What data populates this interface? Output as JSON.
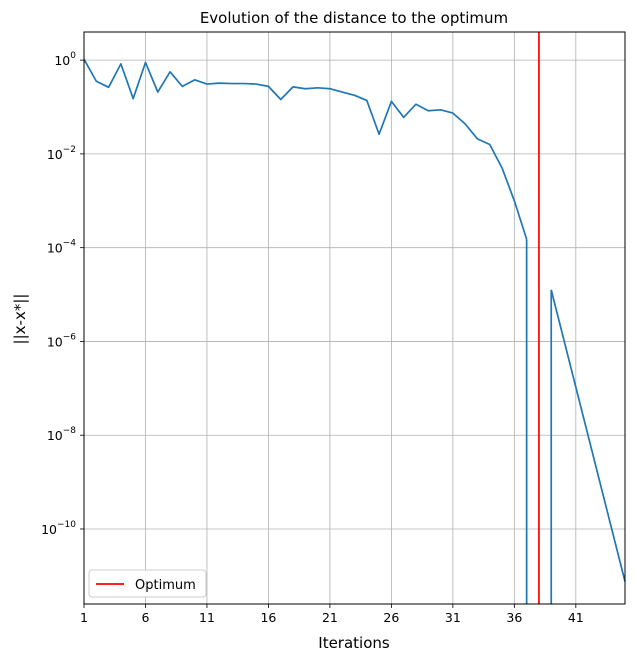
{
  "chart_data": {
    "type": "line",
    "title": "Evolution of the distance to the optimum",
    "xlabel": "Iterations",
    "ylabel": "||x-x*||",
    "yscale": "log",
    "xlim": [
      1,
      45
    ],
    "ylim_exponent": [
      -11.6,
      0.6
    ],
    "grid": true,
    "legend_placement": "lower-left",
    "xticks": [
      1,
      6,
      11,
      16,
      21,
      26,
      31,
      36,
      41
    ],
    "yticks_exponent": [
      0,
      -2,
      -4,
      -6,
      -8,
      -10
    ],
    "series": [
      {
        "color": "#1f77b4",
        "segments": [
          {
            "x": [
              1,
              2,
              3,
              4,
              5,
              6,
              7,
              8,
              9,
              10,
              11,
              12,
              13,
              14,
              15,
              16,
              17,
              18,
              19,
              20,
              21,
              22,
              23,
              24,
              25,
              26,
              27,
              28,
              29,
              30,
              31,
              32,
              33,
              34,
              35,
              36,
              37
            ],
            "y_exponent": [
              0.02,
              -0.45,
              -0.58,
              -0.08,
              -0.82,
              -0.05,
              -0.68,
              -0.25,
              -0.56,
              -0.42,
              -0.51,
              -0.49,
              -0.5,
              -0.5,
              -0.51,
              -0.56,
              -0.84,
              -0.57,
              -0.61,
              -0.59,
              -0.61,
              -0.68,
              -0.75,
              -0.86,
              -1.58,
              -0.88,
              -1.22,
              -0.94,
              -1.08,
              -1.06,
              -1.13,
              -1.36,
              -1.68,
              -1.8,
              -2.3,
              -3.0,
              -3.82
            ]
          },
          {
            "x": [
              37,
              37
            ],
            "y_exponent": [
              -3.82,
              -11.6
            ]
          },
          {
            "x": [
              39,
              39
            ],
            "y_exponent": [
              -11.6,
              -4.9
            ]
          },
          {
            "x": [
              39,
              45
            ],
            "y_exponent": [
              -4.9,
              -11.12
            ]
          }
        ]
      }
    ],
    "reference_lines": [
      {
        "name": "Optimum",
        "orientation": "vertical",
        "x": 38,
        "color": "#ff0000"
      }
    ],
    "legend": [
      {
        "label": "Optimum",
        "color": "#ff0000"
      }
    ]
  }
}
